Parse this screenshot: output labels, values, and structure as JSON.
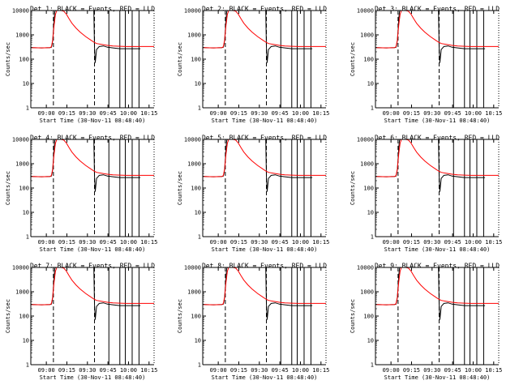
{
  "charts": {
    "type": "line",
    "ylabel": "Counts/sec",
    "xlabel": "Start Time (30-Nov-11 08:48:40)",
    "x_tick_labels": [
      "09:00",
      "09:15",
      "09:30",
      "09:45",
      "10:00",
      "10:15"
    ],
    "y_tick_labels": [
      "1",
      "10",
      "100",
      "1000",
      "10000"
    ],
    "panels": [
      {
        "title": "Det 1: BLACK = Events, RED = LLD"
      },
      {
        "title": "Det 2: BLACK = Events, RED = LLD"
      },
      {
        "title": "Det 3: BLACK = Events, RED = LLD"
      },
      {
        "title": "Det 4: BLACK = Events, RED = LLD"
      },
      {
        "title": "Det 5: BLACK = Events, RED = LLD"
      },
      {
        "title": "Det 6: BLACK = Events, RED = LLD"
      },
      {
        "title": "Det 7: BLACK = Events, RED = LLD"
      },
      {
        "title": "Det 8: BLACK = Events, RED = LLD"
      },
      {
        "title": "Det 9: BLACK = Events, RED = LLD"
      }
    ]
  },
  "chart_data": {
    "type": "line",
    "xlabel": "Start Time (30-Nov-11 08:48:40)",
    "ylabel": "Counts/sec",
    "y_scale": "log",
    "ylim": [
      1,
      10000
    ],
    "x_ticks": [
      "09:00",
      "09:15",
      "09:30",
      "09:45",
      "10:00",
      "10:15"
    ],
    "xlim_minutes": [
      0,
      90
    ],
    "x_unit": "minutes after 08:48:40",
    "dashed_vlines_minutes": [
      16.5,
      46.5
    ],
    "solid_vlines_minutes": [
      57,
      65,
      69,
      74,
      79
    ],
    "colors": {
      "events": "#000000",
      "lld": "#ff0000"
    },
    "series": [
      {
        "name": "Events",
        "x": [
          0,
          8,
          14,
          15,
          15.5,
          16,
          16.5,
          17,
          17.5,
          18,
          19,
          20,
          21,
          22,
          23,
          25,
          28,
          32,
          36,
          40,
          44,
          46,
          46.5,
          47,
          48,
          50,
          53,
          56,
          60,
          65,
          70,
          75,
          80
        ],
        "y": [
          300,
          290,
          300,
          310,
          400,
          600,
          1500,
          4500,
          9000,
          10000,
          10000,
          10000,
          10000,
          10000,
          10000,
          10000,
          10000,
          10000,
          10000,
          10000,
          10000,
          10000,
          330,
          70,
          250,
          330,
          350,
          310,
          290,
          270,
          270,
          270,
          270
        ]
      },
      {
        "name": "LLD",
        "x": [
          0,
          8,
          14,
          15,
          16,
          17,
          18,
          19,
          20,
          21,
          22,
          24,
          26,
          28,
          30,
          33,
          36,
          40,
          44,
          46,
          48,
          52,
          56,
          60,
          65,
          70,
          75,
          80,
          85,
          90
        ],
        "y": [
          300,
          290,
          300,
          320,
          600,
          2500,
          7000,
          10000,
          10000,
          10000,
          10000,
          9500,
          7000,
          4500,
          3000,
          1900,
          1300,
          850,
          600,
          500,
          440,
          400,
          370,
          350,
          340,
          330,
          330,
          330,
          330,
          330
        ]
      }
    ]
  }
}
